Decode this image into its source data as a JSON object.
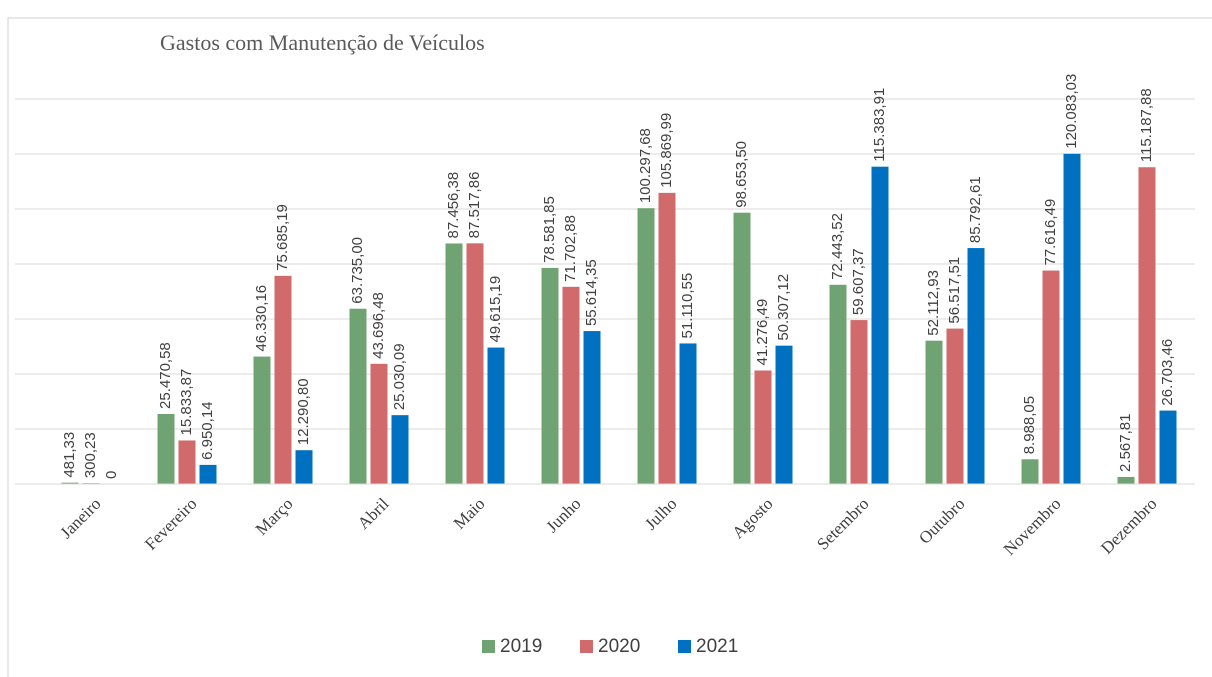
{
  "chart_data": {
    "type": "bar",
    "title": "Gastos com Manutenção de Veículos",
    "categories": [
      "Janeiro",
      "Fevereiro",
      "Março",
      "Abril",
      "Maio",
      "Junho",
      "Julho",
      "Agosto",
      "Setembro",
      "Outubro",
      "Novembro",
      "Dezembro"
    ],
    "series": [
      {
        "name": "2019",
        "color": "#70a372",
        "values": [
          481.33,
          25470.58,
          46330.16,
          63735.0,
          87456.38,
          78581.85,
          100297.68,
          98653.5,
          72443.52,
          52112.93,
          8988.05,
          2567.81
        ],
        "value_labels": [
          "481,33",
          "25.470,58",
          "46.330,16",
          "63.735,00",
          "87.456,38",
          "78.581,85",
          "100.297,68",
          "98.653,50",
          "72.443,52",
          "52.112,93",
          "8.988,05",
          "2.567,81"
        ]
      },
      {
        "name": "2020",
        "color": "#d16b6b",
        "values": [
          300.23,
          15833.87,
          75685.19,
          43696.48,
          87517.86,
          71702.88,
          105869.99,
          41276.49,
          59607.37,
          56517.51,
          77616.49,
          115187.88
        ],
        "value_labels": [
          "300,23",
          "15.833,87",
          "75.685,19",
          "43.696,48",
          "87.517,86",
          "71.702,88",
          "105.869,99",
          "41.276,49",
          "59.607,37",
          "56.517,51",
          "77.616,49",
          "115.187,88"
        ]
      },
      {
        "name": "2021",
        "color": "#0070c0",
        "values": [
          0,
          6950.14,
          12290.8,
          25030.09,
          49615.19,
          55614.35,
          51110.55,
          50307.12,
          115383.91,
          85792.61,
          120083.03,
          26703.46
        ],
        "value_labels": [
          "0",
          "6.950,14",
          "12.290,80",
          "25.030,09",
          "49.615,19",
          "55.614,35",
          "51.110,55",
          "50.307,12",
          "115.383,91",
          "85.792,61",
          "120.083,03",
          "26.703,46"
        ]
      }
    ],
    "ylim": [
      0,
      140000
    ],
    "yticks": [
      0,
      20000,
      40000,
      60000,
      80000,
      100000,
      120000,
      140000
    ],
    "grid": true,
    "legend": "bottom"
  }
}
